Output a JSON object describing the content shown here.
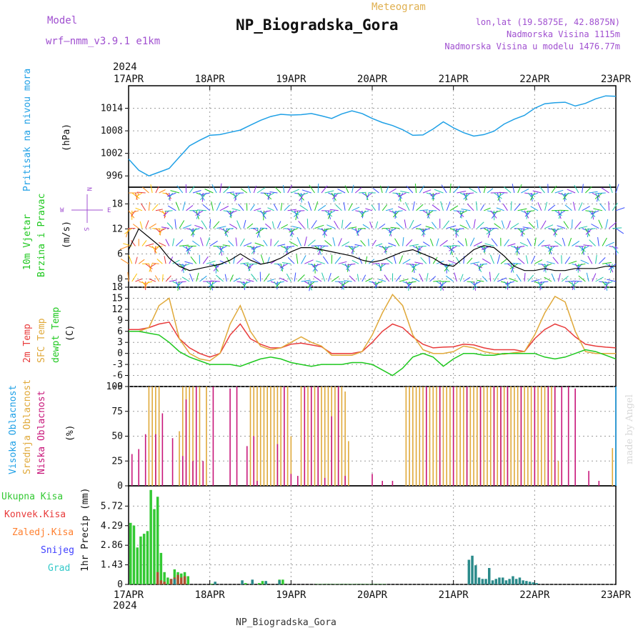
{
  "header": {
    "model_label": "Model",
    "model_name": "wrf—nmm_v3.9.1  e1km",
    "subtitle": "Meteogram",
    "title": "NP_Biogradska_Gora",
    "coords": "lon,lat (19.5875E, 42.8875N)",
    "elevation": "Nadmorska Visina 1115m",
    "model_elevation": "Nadmorska Visina u modelu 1476.77m",
    "year_top": "2024",
    "year_bottom": "2024",
    "footer": "NP_Biogradska_Gora",
    "watermark": "made by Angel"
  },
  "colors": {
    "pressure": "#1fa0e6",
    "temp2m": "#e83a3a",
    "sfc": "#e0a93a",
    "dew": "#1ec81e",
    "high_cloud": "#1fa0e6",
    "mid_cloud": "#e0a93a",
    "low_cloud": "#c8167a",
    "total_precip": "#33c933",
    "conv_precip": "#e83a3a",
    "frozen": "#ff8030",
    "snow": "#4040ff",
    "grad": "#33c9c9",
    "title_purple": "#a050d0"
  },
  "chart_data": [
    {
      "type": "line",
      "panel": "pressure",
      "ylabel_main": "Pritisak na nivou mora",
      "unit": "(hPa)",
      "yticks": [
        996,
        1002,
        1008,
        1014
      ],
      "ylim": [
        993,
        1020
      ],
      "x_dates": [
        "17APR",
        "18APR",
        "19APR",
        "20APR",
        "21APR",
        "22APR",
        "23APR"
      ],
      "x_hours": [
        0,
        3,
        6,
        9,
        12,
        15,
        18,
        21,
        24,
        27,
        30,
        33,
        36,
        39,
        42,
        45,
        48,
        51,
        54,
        57,
        60,
        63,
        66,
        69,
        72,
        75,
        78,
        81,
        84,
        87,
        90,
        93,
        96,
        99,
        102,
        105,
        108,
        111,
        114,
        117,
        120,
        123,
        126,
        129,
        132,
        135,
        138,
        141,
        144
      ],
      "values": [
        1000.5,
        997.5,
        996,
        997,
        998,
        1001,
        1004,
        1005.5,
        1006.8,
        1007,
        1007.6,
        1008.2,
        1009.5,
        1010.8,
        1011.8,
        1012.4,
        1012.2,
        1012.3,
        1012.6,
        1012,
        1011.3,
        1012.5,
        1013.3,
        1012.6,
        1011.3,
        1010.2,
        1009.4,
        1008.3,
        1006.8,
        1006.9,
        1008.5,
        1010.4,
        1008.8,
        1007.5,
        1006.6,
        1007,
        1007.9,
        1009.8,
        1011.1,
        1012.1,
        1014,
        1015.2,
        1015.5,
        1015.6,
        1014.6,
        1015.3,
        1016.5,
        1017.3,
        1017.2
      ]
    },
    {
      "type": "line",
      "panel": "wind",
      "ylabel_main": "10m Vjetar",
      "ylabel_second": "Brzina i Pravac",
      "unit": "(m/s)",
      "compass": {
        "n": "N",
        "s": "S",
        "w": "W",
        "e": "E"
      },
      "yticks": [
        0,
        6,
        12,
        18
      ],
      "ylim": [
        -2,
        22
      ],
      "series": [
        {
          "name": "",
          "x_hours": [
            0,
            3,
            6,
            9,
            12,
            15,
            18,
            21,
            24,
            27,
            30,
            33,
            36,
            39,
            42,
            45,
            48,
            51,
            54,
            57,
            60,
            63,
            66,
            69,
            72,
            75,
            78,
            81,
            84,
            87,
            90,
            93,
            96,
            99,
            102,
            105,
            108,
            111,
            114,
            117,
            120,
            123,
            126,
            129,
            132,
            135,
            138,
            141,
            144
          ],
          "values": [
            7,
            12,
            10,
            8,
            5,
            3,
            2,
            2.5,
            3,
            3.5,
            4.5,
            6,
            4.5,
            3.5,
            4,
            5,
            6.5,
            7.5,
            7.5,
            7,
            6.5,
            6,
            5.5,
            4.5,
            4,
            4.5,
            5.5,
            6.5,
            7,
            6,
            5,
            3.5,
            3,
            5,
            7,
            8,
            7.5,
            5.5,
            3,
            2,
            2,
            2.5,
            2,
            2,
            2.5,
            2.5,
            2.5,
            3,
            3
          ]
        }
      ]
    },
    {
      "type": "line",
      "panel": "temperature",
      "ylabel_a": "2m Temp",
      "ylabel_b": "SFC Temp",
      "ylabel_c": "dewpt Temp",
      "unit": "(C)",
      "yticks": [
        -9,
        -6,
        -3,
        0,
        3,
        6,
        9,
        12,
        15,
        18
      ],
      "ylim": [
        -9,
        18
      ],
      "x_hours": [
        0,
        3,
        6,
        9,
        12,
        15,
        18,
        21,
        24,
        27,
        30,
        33,
        36,
        39,
        42,
        45,
        48,
        51,
        54,
        57,
        60,
        63,
        66,
        69,
        72,
        75,
        78,
        81,
        84,
        87,
        90,
        93,
        96,
        99,
        102,
        105,
        108,
        111,
        114,
        117,
        120,
        123,
        126,
        129,
        132,
        135,
        138,
        141,
        144
      ],
      "series": [
        {
          "name": "2m Temp",
          "values": [
            6.5,
            6.5,
            7,
            8,
            8.5,
            4,
            1.5,
            0,
            -1,
            0,
            5,
            8,
            4,
            2.5,
            1.5,
            1.5,
            2.5,
            2.8,
            2.3,
            1.8,
            0,
            0,
            0,
            0.5,
            3,
            6,
            8,
            7,
            4.5,
            2.5,
            1.5,
            1.7,
            1.8,
            2.5,
            2.3,
            1.5,
            1,
            1,
            1,
            0.5,
            4,
            6.5,
            8,
            7,
            4.5,
            2.5,
            2,
            1.7,
            1.5
          ]
        },
        {
          "name": "SFC Temp",
          "values": [
            6,
            6,
            7,
            13,
            15,
            4,
            0,
            -1.5,
            -2,
            0,
            8,
            13,
            6,
            2,
            1,
            1.5,
            3,
            4.5,
            3,
            2,
            -0.5,
            -0.5,
            -0.5,
            0.5,
            5,
            11,
            16,
            13,
            5,
            1,
            0,
            0,
            0.5,
            2,
            1.5,
            0.5,
            0,
            -0.2,
            0.2,
            0.5,
            5,
            11,
            15.5,
            14,
            6,
            0.5,
            0,
            0,
            0
          ]
        },
        {
          "name": "dewpt Temp",
          "values": [
            6,
            6,
            5.5,
            5,
            3,
            0.5,
            -1,
            -2,
            -3,
            -3,
            -3,
            -3.5,
            -2.5,
            -1.5,
            -1,
            -1.5,
            -2.5,
            -3,
            -3.5,
            -3,
            -3,
            -3,
            -2.5,
            -2.5,
            -3,
            -4.5,
            -6,
            -4,
            -1,
            0,
            -1,
            -3.5,
            -1.5,
            0,
            0,
            -0.5,
            -0.5,
            0,
            0,
            0,
            0,
            -1,
            -1.5,
            -1,
            0,
            1,
            0.5,
            -0.5,
            -1.5
          ]
        }
      ]
    },
    {
      "type": "bar",
      "panel": "clouds",
      "ylabel_a": "Visoka Oblacnost",
      "ylabel_b": "Srednja Oblacnost",
      "ylabel_c": "Niska Oblacnost",
      "unit": "(%)",
      "yticks": [
        0,
        25,
        50,
        75,
        100
      ],
      "ylim": [
        0,
        100
      ],
      "series": [
        {
          "name": "Srednja Oblacnost",
          "x_hours": [
            6,
            7,
            8,
            9,
            15,
            16,
            17,
            18,
            19,
            21,
            23,
            36,
            37,
            38,
            39,
            40,
            41,
            42,
            43,
            44,
            45,
            47,
            48,
            51,
            52,
            53,
            54,
            55,
            56,
            57,
            58,
            59,
            60,
            61,
            62,
            63,
            64,
            65,
            82,
            83,
            84,
            85,
            86,
            87,
            88,
            89,
            90,
            91,
            92,
            93,
            94,
            95,
            96,
            97,
            98,
            99,
            100,
            101,
            102,
            103,
            104,
            105,
            106,
            107,
            108,
            109,
            110,
            111,
            112,
            113,
            114,
            115,
            116,
            117,
            118,
            119,
            120,
            121,
            122,
            123,
            124,
            125,
            126,
            127,
            128,
            143
          ],
          "values": [
            100,
            100,
            100,
            100,
            55,
            100,
            100,
            100,
            100,
            100,
            100,
            100,
            100,
            100,
            100,
            100,
            100,
            100,
            100,
            100,
            100,
            100,
            50,
            100,
            100,
            100,
            100,
            100,
            100,
            100,
            100,
            100,
            100,
            100,
            100,
            100,
            95,
            45,
            100,
            100,
            100,
            100,
            100,
            100,
            100,
            100,
            100,
            100,
            100,
            100,
            100,
            100,
            100,
            100,
            100,
            100,
            100,
            100,
            100,
            100,
            100,
            100,
            100,
            100,
            100,
            100,
            100,
            100,
            100,
            100,
            100,
            100,
            100,
            100,
            100,
            100,
            100,
            100,
            100,
            100,
            100,
            100,
            100,
            25,
            25,
            38
          ]
        },
        {
          "name": "Niska Oblacnost",
          "x_hours": [
            1,
            3,
            5,
            8,
            10,
            13,
            16,
            17,
            19,
            20,
            22,
            25,
            30,
            32,
            35,
            37,
            38,
            44,
            46,
            48,
            50,
            52,
            54,
            56,
            58,
            60,
            62,
            64,
            72,
            75,
            78,
            88,
            92,
            96,
            100,
            104,
            108,
            110,
            112,
            116,
            120,
            124,
            126,
            128,
            130,
            132,
            136,
            139
          ],
          "values": [
            32,
            37,
            52,
            52,
            73,
            48,
            30,
            87,
            25,
            100,
            25,
            100,
            98,
            100,
            40,
            50,
            5,
            42,
            100,
            12,
            10,
            100,
            100,
            100,
            8,
            70,
            100,
            10,
            12,
            5,
            5,
            100,
            100,
            100,
            100,
            100,
            100,
            100,
            100,
            100,
            100,
            100,
            100,
            100,
            100,
            98,
            15,
            5
          ]
        },
        {
          "name": "Visoka Oblacnost",
          "x_hours": [
            144
          ],
          "values": [
            100
          ]
        }
      ]
    },
    {
      "type": "bar",
      "panel": "precipitation",
      "legend": [
        "Ukupna Kisa",
        "Konvek.Kisa",
        "Zaledj.Kisa",
        "Snijeg",
        "Grad"
      ],
      "unit": "1hr Precip (mm)",
      "yticks": [
        0,
        1.43,
        2.86,
        4.29,
        5.72
      ],
      "ylim": [
        0,
        7.2
      ],
      "series": [
        {
          "name": "Ukupna Kisa",
          "x_hours": [
            0,
            1,
            2,
            3,
            4,
            5,
            6,
            7,
            8,
            9,
            10,
            11,
            12,
            13,
            14,
            15,
            16,
            17,
            24,
            25,
            34,
            36,
            38,
            39,
            40,
            44,
            45,
            55,
            56,
            57,
            58,
            59,
            60,
            61,
            62,
            63,
            64,
            65,
            66,
            67,
            68,
            69,
            70,
            71,
            72,
            73,
            74,
            75
          ],
          "values": [
            4.5,
            4.3,
            2.7,
            3.5,
            3.7,
            3.9,
            6.9,
            5.5,
            6.4,
            2.3,
            0.9,
            0.5,
            0.4,
            1.1,
            0.9,
            0.8,
            0.9,
            0.6,
            0.05,
            0.05,
            0.1,
            0.2,
            0.1,
            0.25,
            0.2,
            0.35,
            0.35,
            0.02,
            0.02,
            0.02,
            0.02,
            0.02,
            0.02,
            0.02,
            0.02,
            0.02,
            0.02,
            0.02,
            0.02,
            0.02,
            0.02,
            0.02,
            0.02,
            0.02,
            0.02,
            0.02,
            0.02,
            0.02
          ]
        },
        {
          "name": "Konvek.Kisa",
          "x_hours": [
            8,
            9,
            10,
            12,
            13,
            14,
            15,
            16
          ],
          "values": [
            0.9,
            0.3,
            0.2,
            0.4,
            0.5,
            0.7,
            0.5,
            0.6
          ]
        },
        {
          "name": "Grad",
          "x_hours": [
            13,
            25,
            33,
            36,
            40,
            44,
            100,
            101,
            102,
            103,
            104,
            105,
            106,
            107,
            108,
            109,
            110,
            111,
            112,
            113,
            114,
            115,
            116,
            117,
            118,
            119,
            120
          ],
          "values": [
            0.4,
            0.2,
            0.3,
            0.35,
            0.25,
            0.3,
            1.8,
            2.1,
            1.4,
            0.5,
            0.4,
            0.4,
            1.2,
            0.3,
            0.4,
            0.5,
            0.5,
            0.3,
            0.4,
            0.6,
            0.4,
            0.5,
            0.3,
            0.25,
            0.2,
            0.15,
            0.1
          ]
        }
      ]
    }
  ]
}
